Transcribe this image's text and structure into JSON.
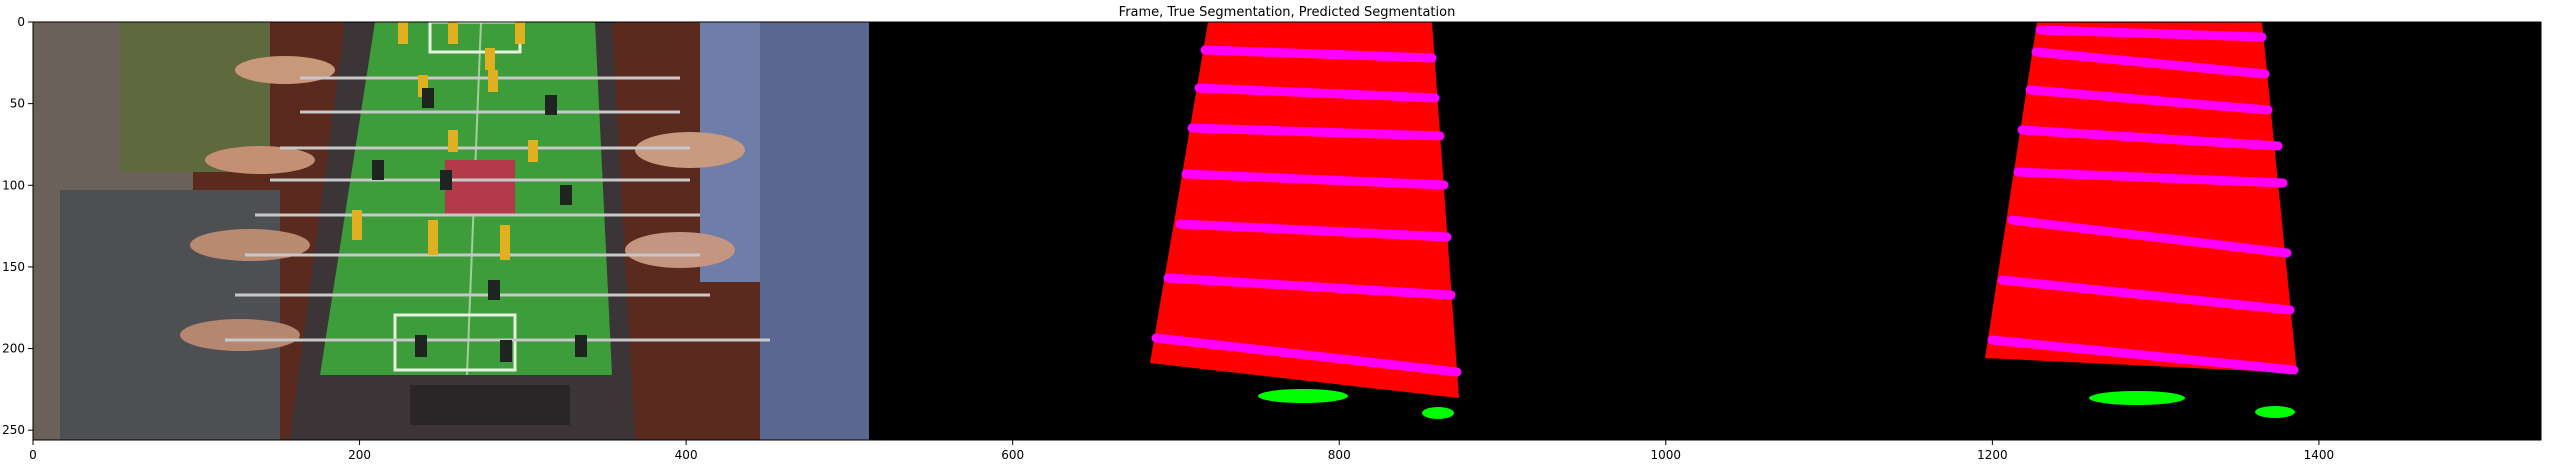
{
  "chart_data": {
    "type": "image",
    "title": "Frame, True Segmentation, Predicted Segmentation",
    "xlim": [
      0,
      1536
    ],
    "ylim": [
      256,
      0
    ],
    "panels": [
      {
        "name": "Frame",
        "x_start": 0,
        "x_end": 512
      },
      {
        "name": "True Segmentation",
        "x_start": 512,
        "x_end": 1024
      },
      {
        "name": "Predicted Segmentation",
        "x_start": 1024,
        "x_end": 1536
      }
    ],
    "x_ticks": [
      0,
      200,
      400,
      600,
      800,
      1000,
      1200,
      1400
    ],
    "y_ticks": [
      0,
      50,
      100,
      150,
      200,
      250
    ],
    "colors": {
      "table_region": "#ff0000",
      "rod_class": "#ff00ff",
      "ball_class": "#00ff00",
      "background": "#000000",
      "frame_field": "#3a9a35",
      "frame_carpet": "#5a2a20"
    }
  }
}
